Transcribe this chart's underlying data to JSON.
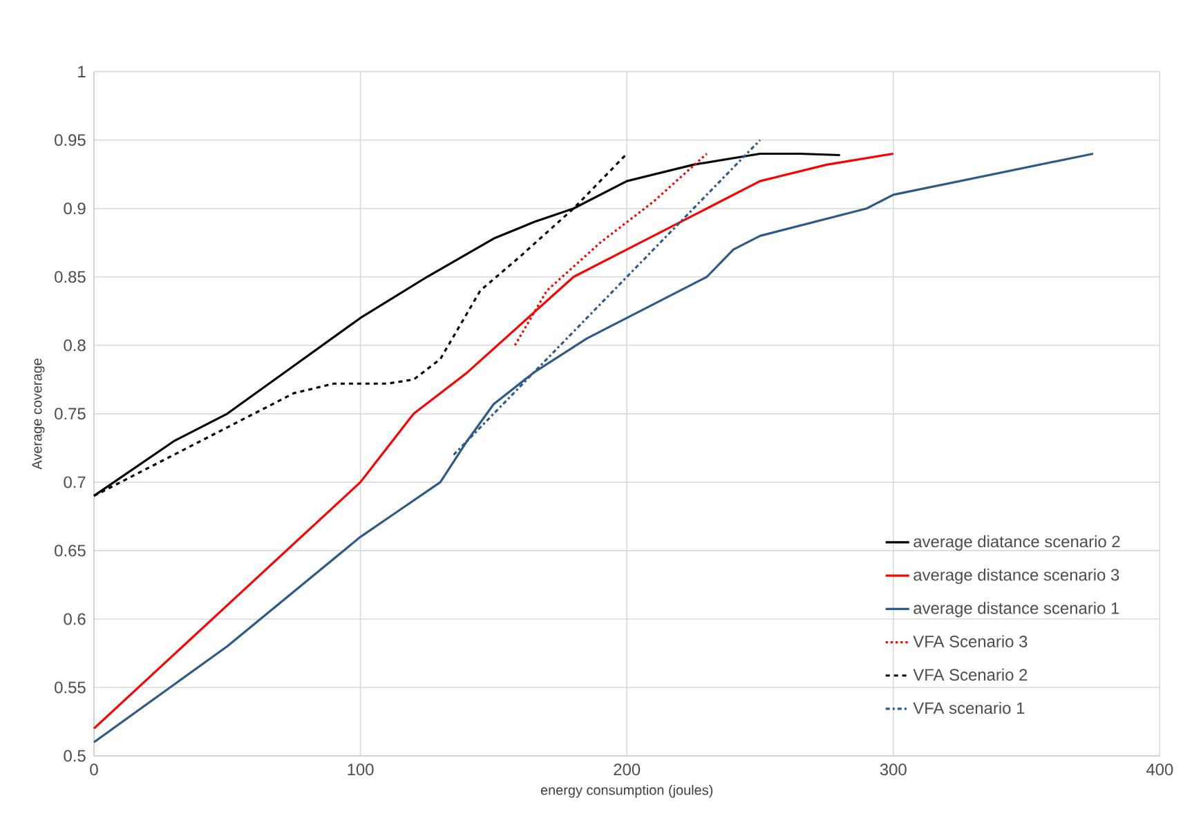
{
  "chart_data": {
    "type": "line",
    "xlabel": "energy consumption (joules)",
    "ylabel": "Average coverage",
    "xlim": [
      0,
      400
    ],
    "xticks": [
      0,
      100,
      200,
      300,
      400
    ],
    "ylim": [
      0.5,
      1
    ],
    "yticks": [
      0.5,
      0.55,
      0.6,
      0.65,
      0.7,
      0.75,
      0.8,
      0.85,
      0.9,
      0.95,
      1
    ],
    "grid": true,
    "legend": "bottom right",
    "series": [
      {
        "name": "average diatance scenario 2",
        "color": "#000000",
        "line_style": "solid",
        "x": [
          0,
          30,
          50,
          75,
          100,
          125,
          150,
          165,
          180,
          200,
          225,
          250,
          265,
          280
        ],
        "values": [
          0.69,
          0.73,
          0.75,
          0.785,
          0.82,
          0.85,
          0.878,
          0.89,
          0.9,
          0.92,
          0.932,
          0.94,
          0.94,
          0.939
        ]
      },
      {
        "name": "average distance scenario 3",
        "color": "#ff0000",
        "line_style": "solid",
        "x": [
          0,
          50,
          100,
          110,
          120,
          140,
          160,
          180,
          200,
          230,
          250,
          275,
          300
        ],
        "values": [
          0.52,
          0.61,
          0.7,
          0.725,
          0.75,
          0.78,
          0.815,
          0.85,
          0.87,
          0.9,
          0.92,
          0.932,
          0.94
        ]
      },
      {
        "name": "average distance scenario 1",
        "color": "#2e5a87",
        "line_style": "solid",
        "x": [
          0,
          50,
          100,
          115,
          130,
          140,
          150,
          165,
          185,
          200,
          230,
          240,
          250,
          270,
          290,
          300,
          375
        ],
        "values": [
          0.51,
          0.58,
          0.66,
          0.68,
          0.7,
          0.73,
          0.757,
          0.78,
          0.805,
          0.82,
          0.85,
          0.87,
          0.88,
          0.89,
          0.9,
          0.91,
          0.94
        ]
      },
      {
        "name": "VFA Scenario 3",
        "color": "#ff0000",
        "line_style": "dotted",
        "x": [
          158,
          170,
          190,
          210,
          230
        ],
        "values": [
          0.8,
          0.84,
          0.875,
          0.905,
          0.94
        ]
      },
      {
        "name": "VFA Scenario 2",
        "color": "#000000",
        "line_style": "dashed",
        "x": [
          0,
          30,
          50,
          75,
          90,
          110,
          120,
          130,
          145,
          160,
          180,
          200
        ],
        "values": [
          0.69,
          0.72,
          0.74,
          0.765,
          0.772,
          0.772,
          0.775,
          0.79,
          0.84,
          0.865,
          0.9,
          0.94
        ]
      },
      {
        "name": "VFA scenario 1",
        "color": "#2e5a87",
        "line_style": "dashdot",
        "x": [
          135,
          160,
          185,
          210,
          230,
          250
        ],
        "values": [
          0.72,
          0.77,
          0.82,
          0.87,
          0.91,
          0.95
        ]
      }
    ]
  }
}
